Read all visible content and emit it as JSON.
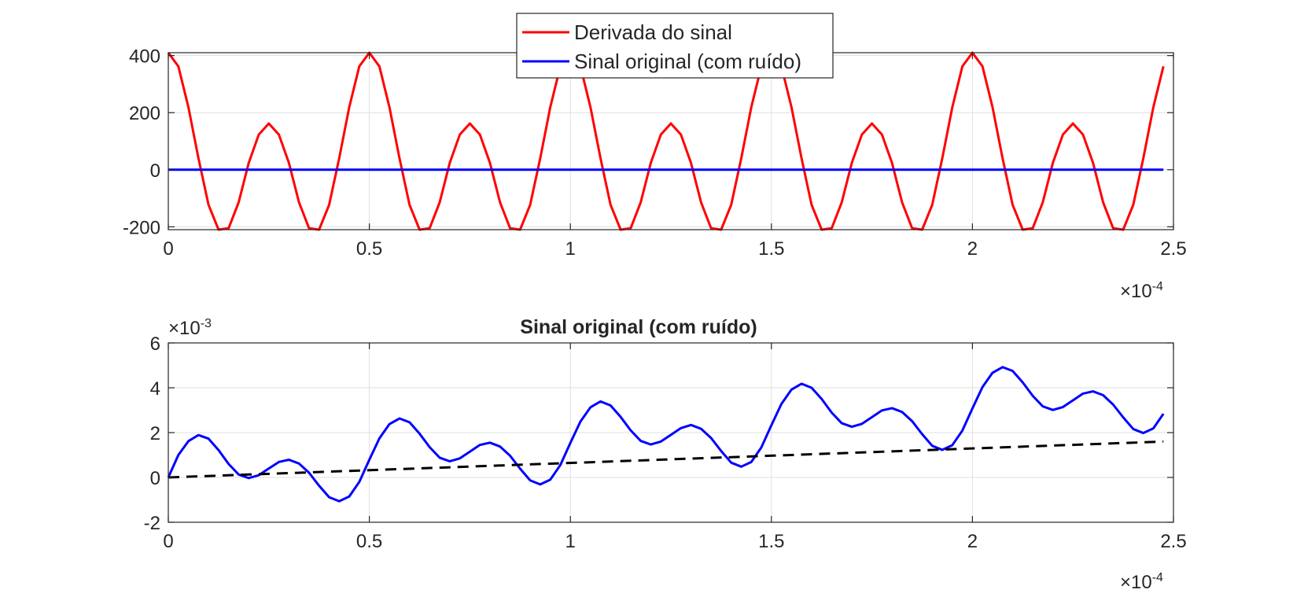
{
  "chart_data": [
    {
      "type": "line",
      "title": "",
      "xlabel": "",
      "ylabel": "",
      "x_exponent_label": "×10",
      "x_exponent": "-4",
      "xlim": [
        0,
        2.5
      ],
      "ylim": [
        -210,
        410
      ],
      "x_ticks": [
        0,
        0.5,
        1,
        1.5,
        2,
        2.5
      ],
      "x_tick_labels": [
        "0",
        "0.5",
        "1",
        "1.5",
        "2",
        "2.5"
      ],
      "y_ticks": [
        -200,
        0,
        200,
        400
      ],
      "y_tick_labels": [
        "-200",
        "0",
        "200",
        "400"
      ],
      "grid": true,
      "legend_position": "top-center",
      "series": [
        {
          "name": "Derivada do sinal",
          "color": "#ff0000",
          "style": "solid",
          "x": [
            0,
            0.025,
            0.05,
            0.075,
            0.1,
            0.125,
            0.15,
            0.175,
            0.2,
            0.225,
            0.25,
            0.275,
            0.3,
            0.325,
            0.35,
            0.375,
            0.4,
            0.425,
            0.45,
            0.475,
            0.5,
            0.525,
            0.55,
            0.575,
            0.6,
            0.625,
            0.65,
            0.675,
            0.7,
            0.725,
            0.75,
            0.775,
            0.8,
            0.825,
            0.85,
            0.875,
            0.9,
            0.925,
            0.95,
            0.975,
            1,
            1.025,
            1.05,
            1.075,
            1.1,
            1.125,
            1.15,
            1.175,
            1.2,
            1.225,
            1.25,
            1.275,
            1.3,
            1.325,
            1.35,
            1.375,
            1.4,
            1.425,
            1.45,
            1.475,
            1.5,
            1.525,
            1.55,
            1.575,
            1.6,
            1.625,
            1.65,
            1.675,
            1.7,
            1.725,
            1.75,
            1.775,
            1.8,
            1.825,
            1.85,
            1.875,
            1.9,
            1.925,
            1.95,
            1.975,
            2,
            2.025,
            2.05,
            2.075,
            2.1,
            2.125,
            2.15,
            2.175,
            2.2,
            2.225,
            2.25,
            2.275,
            2.3,
            2.325,
            2.35,
            2.375,
            2.4,
            2.425,
            2.45,
            2.475
          ],
          "y": [
            410,
            362,
            219,
            40,
            -123,
            -210,
            -205,
            -114,
            24,
            123,
            162,
            123,
            24,
            -114,
            -205,
            -210,
            -123,
            40,
            219,
            362,
            410,
            362,
            219,
            40,
            -123,
            -210,
            -205,
            -114,
            24,
            123,
            162,
            123,
            24,
            -114,
            -205,
            -210,
            -123,
            40,
            219,
            362,
            410,
            362,
            219,
            40,
            -123,
            -210,
            -205,
            -114,
            24,
            123,
            162,
            123,
            24,
            -114,
            -205,
            -210,
            -123,
            40,
            219,
            362,
            410,
            362,
            219,
            40,
            -123,
            -210,
            -205,
            -114,
            24,
            123,
            162,
            123,
            24,
            -114,
            -205,
            -210,
            -123,
            40,
            219,
            362,
            410,
            362,
            219,
            40,
            -123,
            -210,
            -205,
            -114,
            24,
            123,
            162,
            123,
            24,
            -114,
            -205,
            -210,
            -123,
            40,
            219,
            362
          ]
        },
        {
          "name": "Sinal original (com ruído)",
          "color": "#0000ff",
          "style": "solid",
          "x": [
            0,
            2.475
          ],
          "y": [
            0,
            0
          ]
        }
      ]
    },
    {
      "type": "line",
      "title": "Sinal original (com ruído)",
      "xlabel": "",
      "ylabel": "",
      "x_exponent_label": "×10",
      "x_exponent": "-4",
      "y_exponent_label": "×10",
      "y_exponent": "-3",
      "xlim": [
        0,
        2.5
      ],
      "ylim": [
        -2,
        6
      ],
      "x_ticks": [
        0,
        0.5,
        1,
        1.5,
        2,
        2.5
      ],
      "x_tick_labels": [
        "0",
        "0.5",
        "1",
        "1.5",
        "2",
        "2.5"
      ],
      "y_ticks": [
        -2,
        0,
        2,
        4,
        6
      ],
      "y_tick_labels": [
        "-2",
        "0",
        "2",
        "4",
        "6"
      ],
      "grid": true,
      "series": [
        {
          "color": "#0000ff",
          "style": "solid",
          "x": [
            0,
            0.025,
            0.05,
            0.075,
            0.1,
            0.125,
            0.15,
            0.175,
            0.2,
            0.225,
            0.25,
            0.275,
            0.3,
            0.325,
            0.35,
            0.375,
            0.4,
            0.425,
            0.45,
            0.475,
            0.5,
            0.525,
            0.55,
            0.575,
            0.6,
            0.625,
            0.65,
            0.675,
            0.7,
            0.725,
            0.75,
            0.775,
            0.8,
            0.825,
            0.85,
            0.875,
            0.9,
            0.925,
            0.95,
            0.975,
            1,
            1.025,
            1.05,
            1.075,
            1.1,
            1.125,
            1.15,
            1.175,
            1.2,
            1.225,
            1.25,
            1.275,
            1.3,
            1.325,
            1.35,
            1.375,
            1.4,
            1.425,
            1.45,
            1.475,
            1.5,
            1.525,
            1.55,
            1.575,
            1.6,
            1.625,
            1.65,
            1.675,
            1.7,
            1.725,
            1.75,
            1.775,
            1.8,
            1.825,
            1.85,
            1.875,
            1.9,
            1.925,
            1.95,
            1.975,
            2,
            2.025,
            2.05,
            2.075,
            2.1,
            2.125,
            2.15,
            2.175,
            2.2,
            2.225,
            2.25,
            2.275,
            2.3,
            2.325,
            2.35,
            2.375,
            2.4,
            2.425,
            2.45,
            2.475
          ],
          "y": [
            0.0,
            1.0,
            1.62,
            1.89,
            1.73,
            1.22,
            0.6,
            0.13,
            -0.03,
            0.1,
            0.4,
            0.69,
            0.79,
            0.62,
            0.21,
            -0.37,
            -0.88,
            -1.06,
            -0.85,
            -0.2,
            0.79,
            1.74,
            2.38,
            2.63,
            2.46,
            1.95,
            1.35,
            0.88,
            0.72,
            0.85,
            1.15,
            1.45,
            1.55,
            1.38,
            0.97,
            0.39,
            -0.13,
            -0.31,
            -0.1,
            0.55,
            1.54,
            2.49,
            3.13,
            3.39,
            3.21,
            2.7,
            2.1,
            1.63,
            1.47,
            1.6,
            1.9,
            2.2,
            2.34,
            2.17,
            1.76,
            1.18,
            0.66,
            0.48,
            0.69,
            1.34,
            2.33,
            3.28,
            3.92,
            4.18,
            4.0,
            3.5,
            2.89,
            2.42,
            2.26,
            2.39,
            2.69,
            2.99,
            3.09,
            2.92,
            2.51,
            1.93,
            1.41,
            1.23,
            1.44,
            2.09,
            3.08,
            4.03,
            4.67,
            4.92,
            4.75,
            4.24,
            3.64,
            3.17,
            3.01,
            3.14,
            3.44,
            3.74,
            3.84,
            3.67,
            3.25,
            2.68,
            2.16,
            1.98,
            2.19,
            2.84
          ]
        },
        {
          "color": "#000000",
          "style": "dashed",
          "x": [
            0,
            2.475
          ],
          "y": [
            0,
            1.6
          ]
        }
      ]
    }
  ]
}
